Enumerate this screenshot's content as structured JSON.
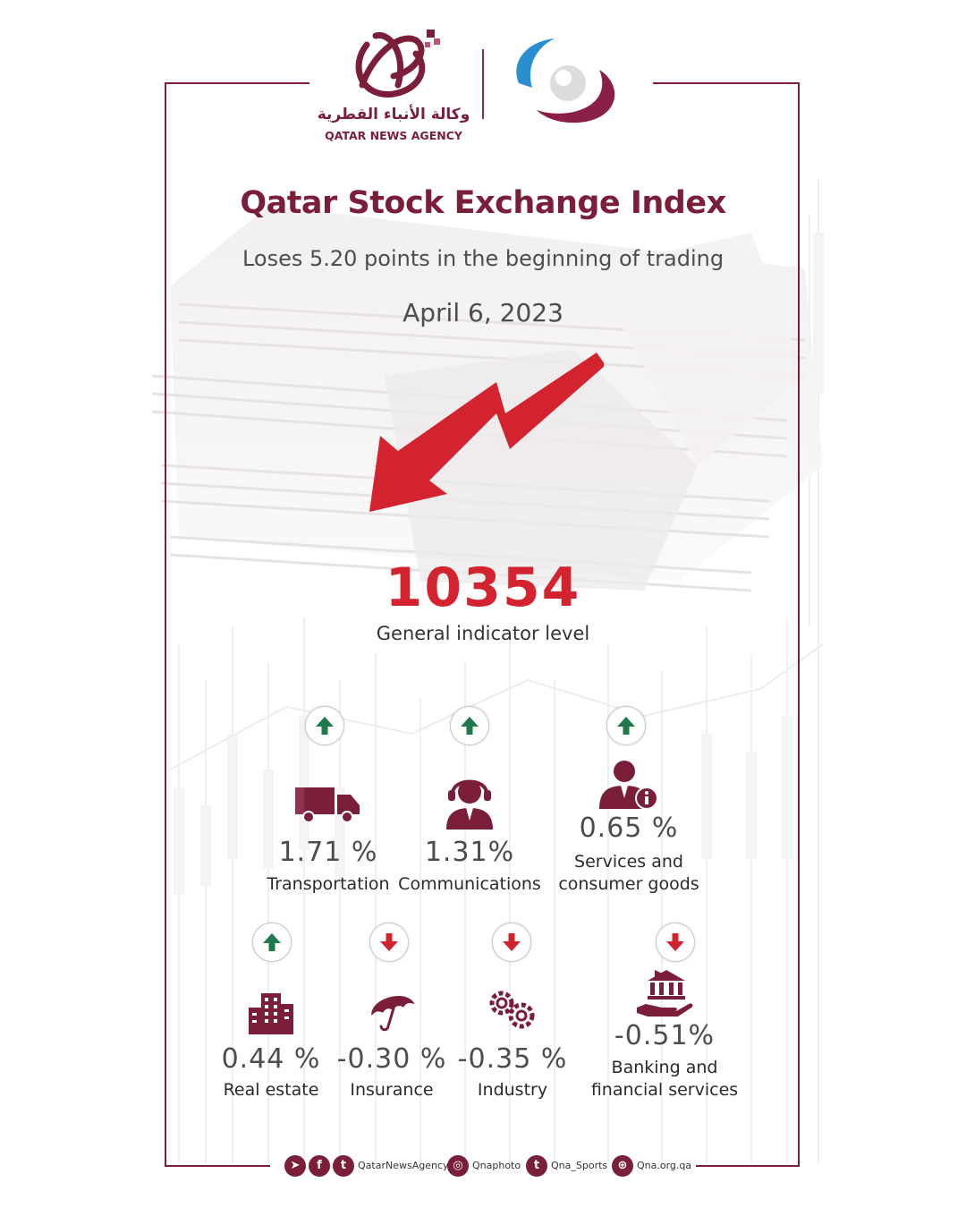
{
  "brand": {
    "agency_name_ar": "وكالة الأنباء القطرية",
    "agency_name_en": "QATAR NEWS AGENCY",
    "primary_color": "#7a1e3a",
    "down_color": "#d2232f",
    "up_color": "#1e7a4a"
  },
  "header": {
    "title": "Qatar Stock Exchange Index",
    "subtitle": "Loses 5.20 points in the beginning of trading",
    "date": "April 6, 2023"
  },
  "index": {
    "value": "10354",
    "label": "General indicator level",
    "direction": "down"
  },
  "sectors": [
    {
      "name": "Transportation",
      "change": "1.71 %",
      "direction": "up",
      "icon": "truck-icon"
    },
    {
      "name": "Communications",
      "change": "1.31%",
      "direction": "up",
      "icon": "headset-icon"
    },
    {
      "name": "Services and\nconsumer goods",
      "change": "0.65 %",
      "direction": "up",
      "icon": "consumer-services-icon"
    },
    {
      "name": "Real estate",
      "change": "0.44 %",
      "direction": "up",
      "icon": "building-icon"
    },
    {
      "name": "Insurance",
      "change": "-0.30 %",
      "direction": "down",
      "icon": "umbrella-icon"
    },
    {
      "name": "Industry",
      "change": "-0.35 %",
      "direction": "down",
      "icon": "gears-icon"
    },
    {
      "name": "Banking and\nfinancial services",
      "change": "-0.51%",
      "direction": "down",
      "icon": "bank-hand-icon"
    }
  ],
  "footer": {
    "handle_main": "QatarNewsAgency",
    "handle_photo": "Qnaphoto",
    "handle_sports": "Qna_Sports",
    "website": "Qna.org.qa"
  }
}
